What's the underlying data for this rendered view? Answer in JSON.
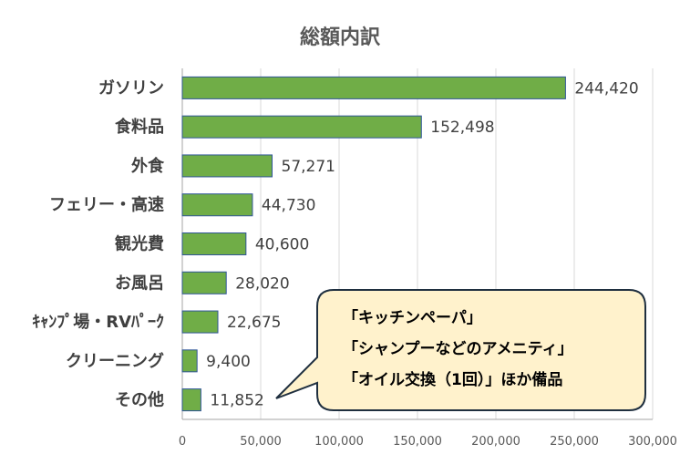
{
  "chart_data": {
    "type": "bar",
    "orientation": "horizontal",
    "title": "総額内訳",
    "categories": [
      "ガソリン",
      "食料品",
      "外食",
      "フェリー・高速",
      "観光費",
      "お風呂",
      "ｷｬﾝﾌﾟ場・RVﾊﾟｰｸ",
      "クリーニング",
      "その他"
    ],
    "values": [
      244420,
      152498,
      57271,
      44730,
      40600,
      28020,
      22675,
      9400,
      11852
    ],
    "value_labels": [
      "244,420",
      "152,498",
      "57,271",
      "44,730",
      "40,600",
      "28,020",
      "22,675",
      "9,400",
      "11,852"
    ],
    "xlim": [
      0,
      300000
    ],
    "xticks": [
      0,
      50000,
      100000,
      150000,
      200000,
      250000,
      300000
    ],
    "xtick_labels": [
      "0",
      "50,000",
      "100,000",
      "150,000",
      "200,000",
      "250,000",
      "300,000"
    ],
    "grid": true,
    "bar_color": "#70AD47",
    "bar_edge_color": "#2F5597",
    "annotation": {
      "target_category": "その他",
      "lines": [
        "「キッチンペーパ」",
        "「シャンプーなどのアメニティ」",
        "「オイル交換（1回）」ほか備品"
      ],
      "fill": "#FFF2CC"
    }
  }
}
